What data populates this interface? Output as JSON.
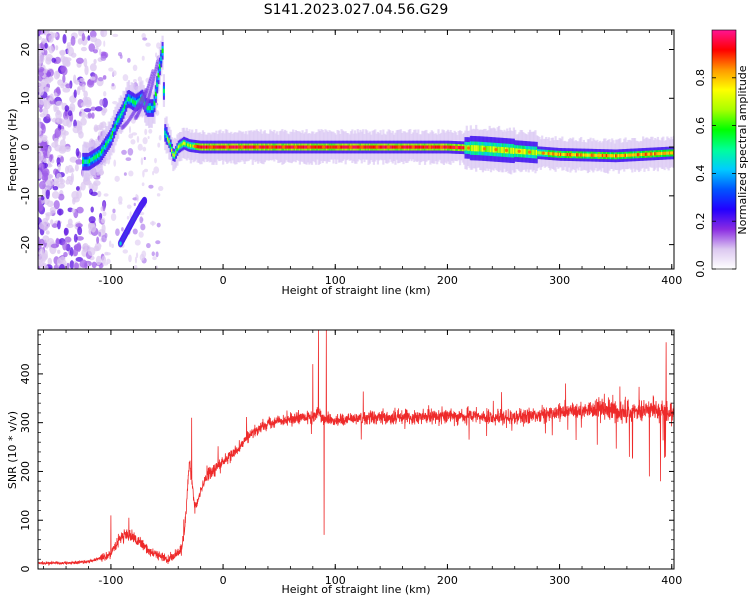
{
  "title": "S141.2023.027.04.56.G29",
  "chart_data": [
    {
      "type": "heatmap",
      "xlabel": "Height of straight line (km)",
      "ylabel": "Frequency (Hz)",
      "xlim": [
        -165,
        402
      ],
      "ylim": [
        -25,
        24
      ],
      "x_ticks": [
        -100,
        0,
        100,
        200,
        300,
        400
      ],
      "y_ticks": [
        -20,
        -10,
        0,
        10,
        20
      ],
      "grid": false,
      "colorbar": {
        "label": "Normalized spectral amplitude",
        "range": [
          0,
          1
        ],
        "ticks": [
          "0.0",
          "0.2",
          "0.4",
          "0.6",
          "0.8"
        ],
        "colors": [
          "#ffffff",
          "#dcc8f0",
          "#8a2be2",
          "#2200ff",
          "#0055ff",
          "#00ccff",
          "#00ff99",
          "#00ff00",
          "#aaff00",
          "#ffff00",
          "#ff9900",
          "#ff0000",
          "#ff1493"
        ]
      },
      "main_ridge": [
        [
          -120,
          -3
        ],
        [
          -110,
          -1.5
        ],
        [
          -100,
          2
        ],
        [
          -95,
          5
        ],
        [
          -90,
          7
        ],
        [
          -85,
          10
        ],
        [
          -78,
          9
        ],
        [
          -72,
          10
        ],
        [
          -68,
          8
        ],
        [
          -62,
          8
        ],
        [
          -57,
          16
        ],
        [
          -54,
          20
        ],
        [
          -52,
          3
        ],
        [
          -48,
          1
        ],
        [
          -44,
          -2
        ],
        [
          -40,
          0
        ],
        [
          -35,
          0.8
        ],
        [
          -30,
          0.3
        ],
        [
          -20,
          0
        ],
        [
          0,
          0
        ],
        [
          50,
          0
        ],
        [
          100,
          0
        ],
        [
          150,
          0
        ],
        [
          200,
          0
        ],
        [
          230,
          -0.3
        ],
        [
          260,
          -0.8
        ],
        [
          300,
          -1.5
        ],
        [
          350,
          -1.8
        ],
        [
          400,
          -1.2
        ]
      ],
      "branch_ridge": [
        [
          -70,
          -11
        ],
        [
          -73,
          -12
        ],
        [
          -78,
          -14
        ],
        [
          -85,
          -17
        ],
        [
          -92,
          -20
        ]
      ]
    },
    {
      "type": "line",
      "xlabel": "Height of straight line (km)",
      "ylabel": "SNR (10 * v/v)",
      "xlim": [
        -165,
        402
      ],
      "ylim": [
        0,
        490
      ],
      "x_ticks": [
        -100,
        0,
        100,
        200,
        300,
        400
      ],
      "y_ticks": [
        0,
        100,
        200,
        300,
        400
      ],
      "grid": false,
      "color": "#ee2a2a",
      "envelope": {
        "x": [
          -165,
          -140,
          -120,
          -100,
          -90,
          -80,
          -70,
          -60,
          -50,
          -40,
          -35,
          -30,
          -25,
          -20,
          -15,
          -10,
          -5,
          0,
          10,
          20,
          30,
          40,
          50,
          60,
          70,
          80,
          85,
          90,
          100,
          120,
          150,
          200,
          250,
          300,
          340,
          360,
          380,
          400
        ],
        "y": [
          12,
          12,
          15,
          30,
          70,
          65,
          45,
          30,
          20,
          30,
          60,
          220,
          120,
          160,
          190,
          200,
          210,
          220,
          240,
          265,
          285,
          300,
          305,
          305,
          310,
          310,
          320,
          310,
          305,
          310,
          310,
          315,
          310,
          320,
          330,
          320,
          330,
          320
        ]
      },
      "spikes": [
        {
          "x": 85,
          "y": 490
        },
        {
          "x": 90,
          "y": 70
        },
        {
          "x": 92,
          "y": 490
        },
        {
          "x": 80,
          "y": 420
        },
        {
          "x": -28,
          "y": 310
        },
        {
          "x": -100,
          "y": 110
        },
        {
          "x": -84,
          "y": 105
        },
        {
          "x": 395,
          "y": 465
        },
        {
          "x": 380,
          "y": 190
        },
        {
          "x": 390,
          "y": 180
        }
      ]
    }
  ]
}
